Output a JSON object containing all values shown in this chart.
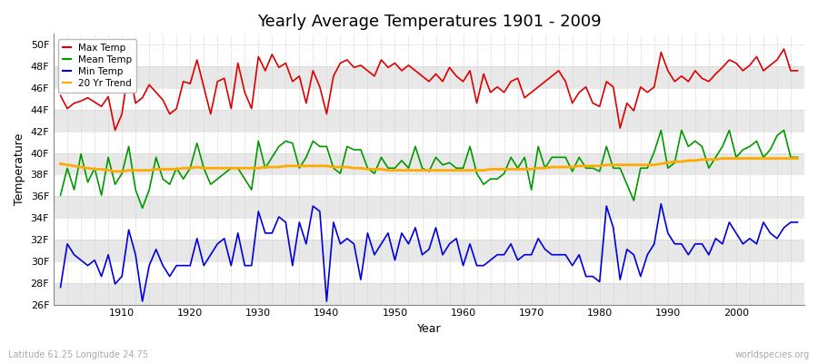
{
  "title": "Yearly Average Temperatures 1901 - 2009",
  "xlabel": "Year",
  "ylabel": "Temperature",
  "subtitle_left": "Latitude 61.25 Longitude 24.75",
  "subtitle_right": "worldspecies.org",
  "ylim": [
    26,
    51
  ],
  "yticks": [
    26,
    28,
    30,
    32,
    34,
    36,
    38,
    40,
    42,
    44,
    46,
    48,
    50
  ],
  "ytick_labels": [
    "26F",
    "28F",
    "30F",
    "32F",
    "34F",
    "36F",
    "38F",
    "40F",
    "42F",
    "44F",
    "46F",
    "48F",
    "50F"
  ],
  "xlim": [
    1900,
    2010
  ],
  "xticks": [
    1910,
    1920,
    1930,
    1940,
    1950,
    1960,
    1970,
    1980,
    1990,
    2000
  ],
  "years": [
    1901,
    1902,
    1903,
    1904,
    1905,
    1906,
    1907,
    1908,
    1909,
    1910,
    1911,
    1912,
    1913,
    1914,
    1915,
    1916,
    1917,
    1918,
    1919,
    1920,
    1921,
    1922,
    1923,
    1924,
    1925,
    1926,
    1927,
    1928,
    1929,
    1930,
    1931,
    1932,
    1933,
    1934,
    1935,
    1936,
    1937,
    1938,
    1939,
    1940,
    1941,
    1942,
    1943,
    1944,
    1945,
    1946,
    1947,
    1948,
    1949,
    1950,
    1951,
    1952,
    1953,
    1954,
    1955,
    1956,
    1957,
    1958,
    1959,
    1960,
    1961,
    1962,
    1963,
    1964,
    1965,
    1966,
    1967,
    1968,
    1969,
    1970,
    1971,
    1972,
    1973,
    1974,
    1975,
    1976,
    1977,
    1978,
    1979,
    1980,
    1981,
    1982,
    1983,
    1984,
    1985,
    1986,
    1987,
    1988,
    1989,
    1990,
    1991,
    1992,
    1993,
    1994,
    1995,
    1996,
    1997,
    1998,
    1999,
    2000,
    2001,
    2002,
    2003,
    2004,
    2005,
    2006,
    2007,
    2008,
    2009
  ],
  "max_temp": [
    45.3,
    44.1,
    44.6,
    44.8,
    45.1,
    44.7,
    44.3,
    45.2,
    42.1,
    43.6,
    47.9,
    44.6,
    45.1,
    46.3,
    45.6,
    44.9,
    43.6,
    44.1,
    46.6,
    46.4,
    48.6,
    46.1,
    43.6,
    46.6,
    46.9,
    44.1,
    48.3,
    45.6,
    44.1,
    48.9,
    47.6,
    49.1,
    47.9,
    48.3,
    46.6,
    47.1,
    44.6,
    47.6,
    46.1,
    43.6,
    47.1,
    48.3,
    48.6,
    47.9,
    48.1,
    47.6,
    47.1,
    48.6,
    47.9,
    48.3,
    47.6,
    48.1,
    47.6,
    47.1,
    46.6,
    47.3,
    46.6,
    47.9,
    47.1,
    46.6,
    47.6,
    44.6,
    47.3,
    45.6,
    46.1,
    45.6,
    46.6,
    46.9,
    45.1,
    45.6,
    46.1,
    46.6,
    47.1,
    47.6,
    46.6,
    44.6,
    45.6,
    46.1,
    44.6,
    44.3,
    46.6,
    46.1,
    42.3,
    44.6,
    43.9,
    46.1,
    45.6,
    46.1,
    49.3,
    47.6,
    46.6,
    47.1,
    46.6,
    47.6,
    46.9,
    46.6,
    47.3,
    47.9,
    48.6,
    48.3,
    47.6,
    48.1,
    48.9,
    47.6,
    48.1,
    48.6,
    49.6,
    47.6,
    47.6
  ],
  "mean_temp": [
    36.1,
    38.6,
    36.6,
    39.9,
    37.3,
    38.6,
    36.1,
    39.6,
    37.1,
    38.1,
    40.6,
    36.6,
    34.9,
    36.6,
    39.6,
    37.6,
    37.1,
    38.6,
    37.6,
    38.6,
    40.9,
    38.6,
    37.1,
    37.6,
    38.1,
    38.6,
    38.6,
    37.6,
    36.6,
    41.1,
    38.6,
    39.6,
    40.6,
    41.1,
    40.9,
    38.6,
    39.6,
    41.1,
    40.6,
    40.6,
    38.6,
    38.1,
    40.6,
    40.3,
    40.3,
    38.6,
    38.1,
    39.6,
    38.6,
    38.6,
    39.3,
    38.6,
    40.6,
    38.6,
    38.3,
    39.6,
    38.9,
    39.1,
    38.6,
    38.6,
    40.6,
    38.1,
    37.1,
    37.6,
    37.6,
    38.1,
    39.6,
    38.6,
    39.6,
    36.6,
    40.6,
    38.6,
    39.6,
    39.6,
    39.6,
    38.3,
    39.6,
    38.6,
    38.6,
    38.3,
    40.6,
    38.6,
    38.6,
    37.1,
    35.6,
    38.6,
    38.6,
    40.1,
    42.1,
    38.6,
    39.1,
    42.1,
    40.6,
    41.1,
    40.6,
    38.6,
    39.6,
    40.6,
    42.1,
    39.6,
    40.3,
    40.6,
    41.1,
    39.6,
    40.3,
    41.6,
    42.1,
    39.6,
    39.6
  ],
  "min_temp": [
    27.6,
    31.6,
    30.6,
    30.1,
    29.6,
    30.1,
    28.6,
    30.6,
    27.9,
    28.6,
    32.9,
    30.6,
    26.3,
    29.6,
    31.1,
    29.6,
    28.6,
    29.6,
    29.6,
    29.6,
    32.1,
    29.6,
    30.6,
    31.6,
    32.1,
    29.6,
    32.6,
    29.6,
    29.6,
    34.6,
    32.6,
    32.6,
    34.1,
    33.6,
    29.6,
    33.6,
    31.6,
    35.1,
    34.6,
    26.3,
    33.6,
    31.6,
    32.1,
    31.6,
    28.3,
    32.6,
    30.6,
    31.6,
    32.6,
    30.1,
    32.6,
    31.6,
    33.1,
    30.6,
    31.1,
    33.1,
    30.6,
    31.6,
    32.1,
    29.6,
    31.6,
    29.6,
    29.6,
    30.1,
    30.6,
    30.6,
    31.6,
    30.1,
    30.6,
    30.6,
    32.1,
    31.1,
    30.6,
    30.6,
    30.6,
    29.6,
    30.6,
    28.6,
    28.6,
    28.1,
    35.1,
    33.1,
    28.3,
    31.1,
    30.6,
    28.6,
    30.6,
    31.6,
    35.3,
    32.6,
    31.6,
    31.6,
    30.6,
    31.6,
    31.6,
    30.6,
    32.1,
    31.6,
    33.6,
    32.6,
    31.6,
    32.1,
    31.6,
    33.6,
    32.6,
    32.1,
    33.1,
    33.6,
    33.6
  ],
  "trend": [
    39.0,
    38.9,
    38.8,
    38.7,
    38.6,
    38.5,
    38.5,
    38.4,
    38.3,
    38.3,
    38.4,
    38.4,
    38.4,
    38.4,
    38.5,
    38.5,
    38.5,
    38.5,
    38.6,
    38.6,
    38.7,
    38.6,
    38.6,
    38.6,
    38.6,
    38.6,
    38.6,
    38.6,
    38.6,
    38.6,
    38.7,
    38.7,
    38.7,
    38.8,
    38.8,
    38.8,
    38.8,
    38.8,
    38.8,
    38.8,
    38.7,
    38.7,
    38.7,
    38.6,
    38.6,
    38.5,
    38.5,
    38.5,
    38.4,
    38.4,
    38.4,
    38.4,
    38.4,
    38.4,
    38.4,
    38.4,
    38.4,
    38.4,
    38.4,
    38.4,
    38.4,
    38.4,
    38.4,
    38.5,
    38.5,
    38.5,
    38.5,
    38.5,
    38.5,
    38.5,
    38.6,
    38.6,
    38.7,
    38.7,
    38.7,
    38.7,
    38.8,
    38.8,
    38.8,
    38.8,
    38.9,
    38.9,
    38.9,
    38.9,
    38.9,
    38.9,
    38.9,
    38.9,
    39.0,
    39.1,
    39.2,
    39.2,
    39.3,
    39.3,
    39.4,
    39.4,
    39.4,
    39.5,
    39.5,
    39.5,
    39.5,
    39.5,
    39.5,
    39.5,
    39.5,
    39.5,
    39.5,
    39.5,
    39.5
  ],
  "max_color": "#dd0000",
  "mean_color": "#009900",
  "min_color": "#0000dd",
  "trend_color": "#ffaa00",
  "bg_color": "#ffffff",
  "band_light": "#ffffff",
  "band_dark": "#e8e8e8",
  "grid_color": "#cccccc",
  "title_fontsize": 13,
  "label_fontsize": 9,
  "tick_fontsize": 8,
  "line_width": 1.2
}
